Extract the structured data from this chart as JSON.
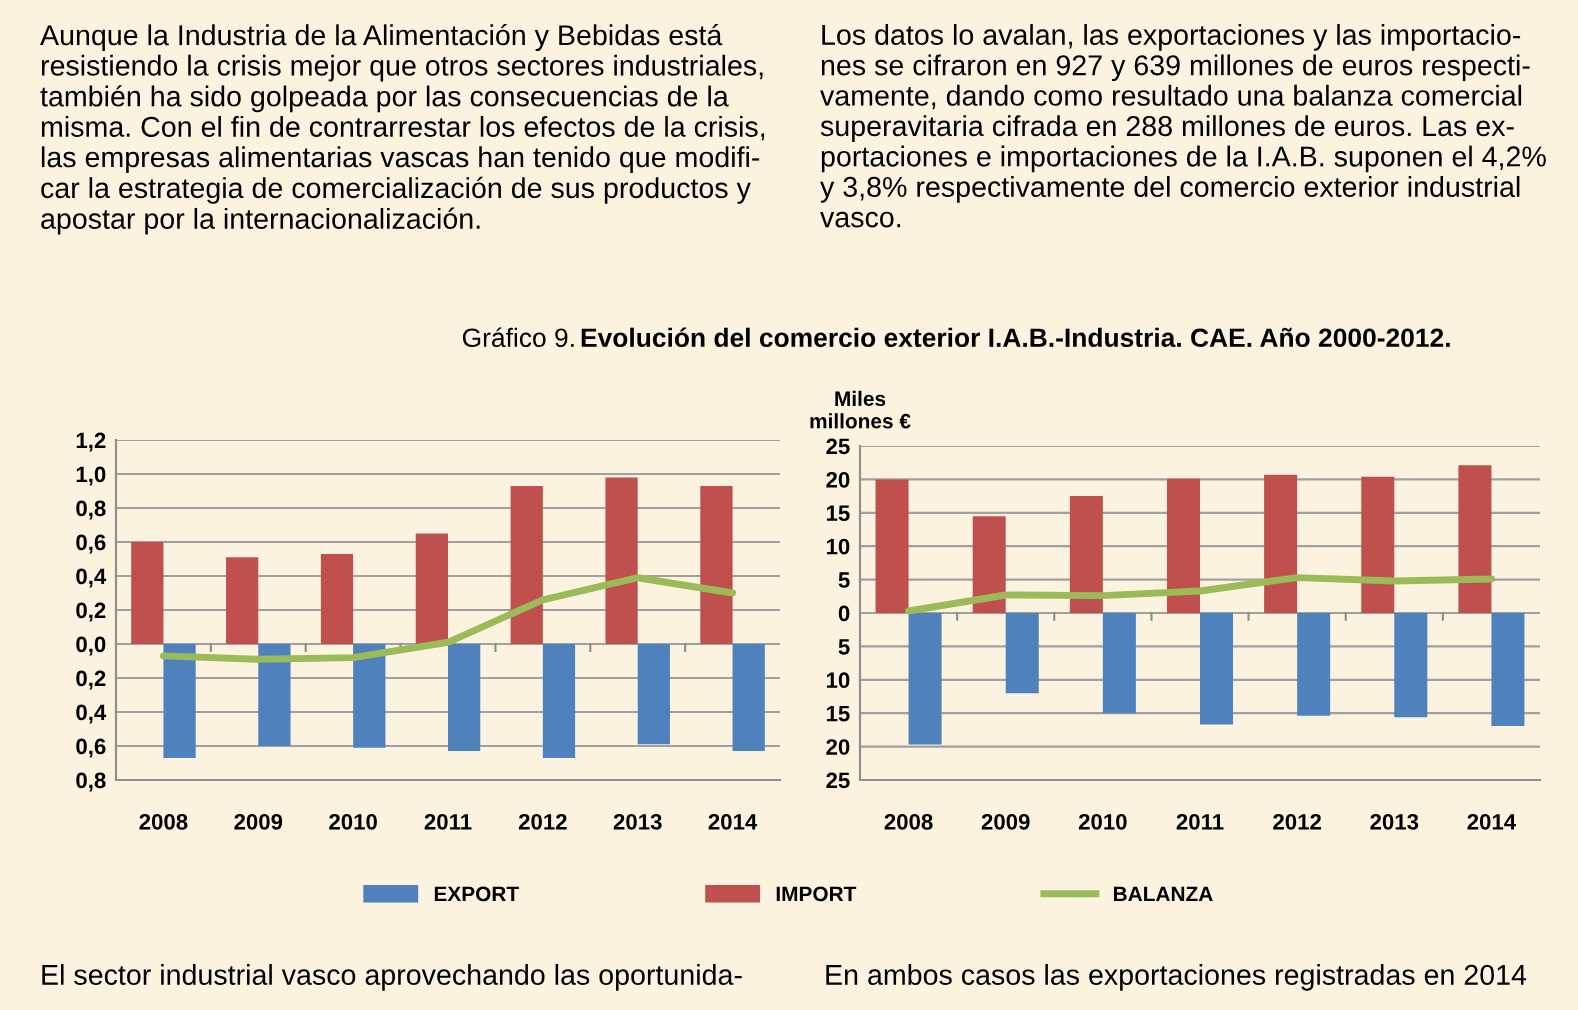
{
  "chart_data": [
    {
      "type": "bar",
      "title": "Evolución del comercio exterior I.A.B.-Industria. CAE. Año 2000-2012.",
      "annotations": [
        "Gráfico 9.",
        "Aunque la Industria de la Alimentación y Bebidas está\nresistiendo la crisis mejor que otros sectores industriales,\ntambién ha sido golpeada por las consecuencias de la\nmisma. Con el fin de contrarrestar los efectos de la crisis,\nlas empresas alimentarias vascas han tenido que modifi-\ncar la estrategia de comercialización de sus productos y\napostar por la internacionalización.",
        "Los datos lo avalan, las exportaciones y las importacio-\nnes se cifraron en 927 y 639 millones de euros respecti-\nvamente, dando como resultado una balanza comercial\nsuperavitaria cifrada en 288 millones de euros. Las ex-\nportaciones e importaciones de la I.A.B. suponen el 4,2%\ny 3,8% respectivamente del comercio exterior industrial\nvasco.",
        "El sector industrial vasco aprovechando las oportunida-",
        "En ambos casos las exportaciones registradas en 2014"
      ],
      "categories": [
        "2008",
        "2009",
        "2010",
        "2011",
        "2012",
        "2013",
        "2014"
      ],
      "series": [
        {
          "name": "EXPORT",
          "color": "#4f81bd",
          "values": [
            -0.67,
            -0.6,
            -0.61,
            -0.63,
            -0.67,
            -0.59,
            -0.63
          ]
        },
        {
          "name": "IMPORT",
          "color": "#c0504d",
          "values": [
            0.6,
            0.51,
            0.53,
            0.65,
            0.93,
            0.98,
            0.93
          ]
        },
        {
          "name": "BALANZA",
          "type": "line",
          "color": "#9bbb59",
          "values": [
            -0.07,
            -0.09,
            -0.08,
            0.01,
            0.26,
            0.39,
            0.3
          ]
        }
      ],
      "ylim": [
        -0.8,
        1.2
      ],
      "yticks": [
        {
          "value": -0.8,
          "label": "0,8"
        },
        {
          "value": -0.6,
          "label": "0,6"
        },
        {
          "value": -0.4,
          "label": "0,4"
        },
        {
          "value": -0.2,
          "label": "0,2"
        },
        {
          "value": 0,
          "label": "0,0"
        },
        {
          "value": 0.2,
          "label": "0,2"
        },
        {
          "value": 0.4,
          "label": "0,4"
        },
        {
          "value": 0.6,
          "label": "0,6"
        },
        {
          "value": 0.8,
          "label": "0,8"
        },
        {
          "value": 1.0,
          "label": "1,0"
        },
        {
          "value": 1.2,
          "label": "1,2"
        }
      ],
      "grid": "y",
      "legend": "bottom"
    },
    {
      "type": "bar",
      "ylabel": "Miles\nmillones €",
      "categories": [
        "2008",
        "2009",
        "2010",
        "2011",
        "2012",
        "2013",
        "2014"
      ],
      "series": [
        {
          "name": "EXPORT",
          "color": "#4f81bd",
          "values": [
            -19.7,
            -12,
            -15,
            -16.7,
            -15.4,
            -15.6,
            -16.9
          ]
        },
        {
          "name": "IMPORT",
          "color": "#c0504d",
          "values": [
            20,
            14.5,
            17.5,
            20.1,
            20.7,
            20.4,
            22.1
          ]
        },
        {
          "name": "BALANZA",
          "type": "line",
          "color": "#9bbb59",
          "values": [
            0.3,
            2.7,
            2.6,
            3.3,
            5.3,
            4.8,
            5.1
          ]
        }
      ],
      "ylim": [
        -25,
        25
      ],
      "yticks": [
        {
          "value": -25,
          "label": "25"
        },
        {
          "value": -20,
          "label": "20"
        },
        {
          "value": -15,
          "label": "15"
        },
        {
          "value": -10,
          "label": "10"
        },
        {
          "value": -5,
          "label": "5"
        },
        0,
        5,
        10,
        15,
        20,
        25
      ],
      "grid": "y"
    }
  ]
}
